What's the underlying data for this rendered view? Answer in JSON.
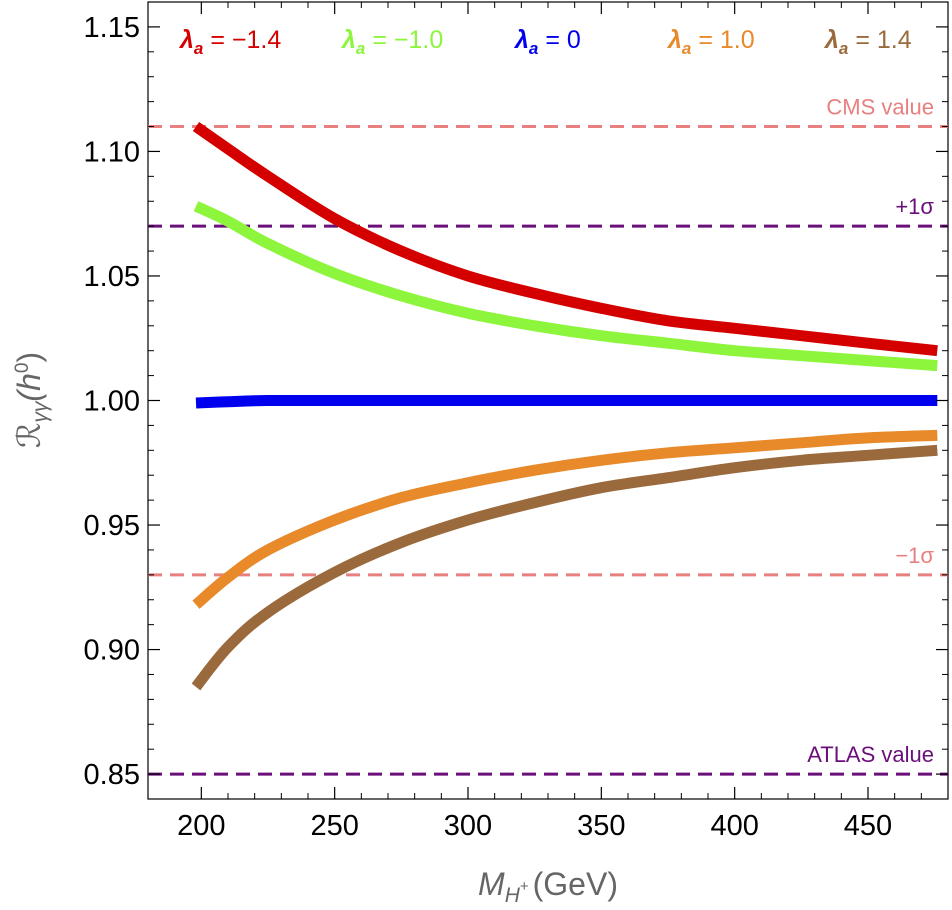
{
  "chart_data": {
    "type": "line",
    "title": "",
    "xlabel": "M_{H⁺} (GeV)",
    "ylabel": "ℛ_{γγ}(h⁰)",
    "xlim": [
      180,
      480
    ],
    "ylim": [
      0.84,
      1.16
    ],
    "x_ticks": [
      200,
      250,
      300,
      350,
      400,
      450
    ],
    "y_ticks": [
      0.85,
      0.9,
      0.95,
      1.0,
      1.05,
      1.1,
      1.15
    ],
    "x_tick_labels": [
      "200",
      "250",
      "300",
      "350",
      "400",
      "450"
    ],
    "y_tick_labels": [
      "0.85",
      "0.90",
      "0.95",
      "1.00",
      "1.05",
      "1.10",
      "1.15"
    ],
    "x_title": {
      "symbol": "M",
      "subscript": "H",
      "superscript": "+",
      "unit": "(GeV)"
    },
    "y_title": {
      "symbol": "ℛ",
      "subscript": "γγ",
      "argument_open": "(h",
      "argument_superscript": "0",
      "argument_close": ")"
    },
    "x": [
      198,
      210,
      225,
      250,
      275,
      300,
      325,
      350,
      375,
      400,
      425,
      450,
      476
    ],
    "series": [
      {
        "name": "λa = −1.4",
        "lambda_symbol": "λ",
        "lambda_sub": "a",
        "value_text": " = −1.4",
        "color": "#d40000",
        "values": [
          1.11,
          1.101,
          1.09,
          1.073,
          1.06,
          1.05,
          1.043,
          1.037,
          1.032,
          1.029,
          1.026,
          1.023,
          1.02
        ]
      },
      {
        "name": "λa = −1.0",
        "lambda_symbol": "λ",
        "lambda_sub": "a",
        "value_text": " = −1.0",
        "color": "#8cf53c",
        "values": [
          1.078,
          1.072,
          1.063,
          1.051,
          1.042,
          1.035,
          1.03,
          1.026,
          1.023,
          1.02,
          1.018,
          1.016,
          1.014
        ]
      },
      {
        "name": "λa = 0",
        "lambda_symbol": "λ",
        "lambda_sub": "a",
        "value_text": " = 0",
        "color": "#0000ee",
        "values": [
          0.999,
          0.9995,
          1.0,
          1.0,
          1.0,
          1.0,
          1.0,
          1.0,
          1.0,
          1.0,
          1.0,
          1.0,
          1.0
        ]
      },
      {
        "name": "λa = 1.0",
        "lambda_symbol": "λ",
        "lambda_sub": "a",
        "value_text": " = 1.0",
        "color": "#e8892a",
        "values": [
          0.918,
          0.929,
          0.94,
          0.952,
          0.961,
          0.967,
          0.972,
          0.976,
          0.979,
          0.981,
          0.983,
          0.985,
          0.986
        ]
      },
      {
        "name": "λa = 1.4",
        "lambda_symbol": "λ",
        "lambda_sub": "a",
        "value_text": " = 1.4",
        "color": "#9a6a3c",
        "values": [
          0.885,
          0.901,
          0.915,
          0.931,
          0.943,
          0.952,
          0.959,
          0.965,
          0.969,
          0.973,
          0.976,
          0.978,
          0.98
        ]
      }
    ],
    "reference_lines": [
      {
        "label": "CMS value",
        "y": 1.11,
        "color": "#e88080"
      },
      {
        "label": "+1σ",
        "y": 1.07,
        "color": "#6b0f7a"
      },
      {
        "label": "−1σ",
        "y": 0.93,
        "color": "#e88080"
      },
      {
        "label": "ATLAS value",
        "y": 0.85,
        "color": "#6b0f7a"
      }
    ],
    "legend_position": "top",
    "grid": false
  }
}
